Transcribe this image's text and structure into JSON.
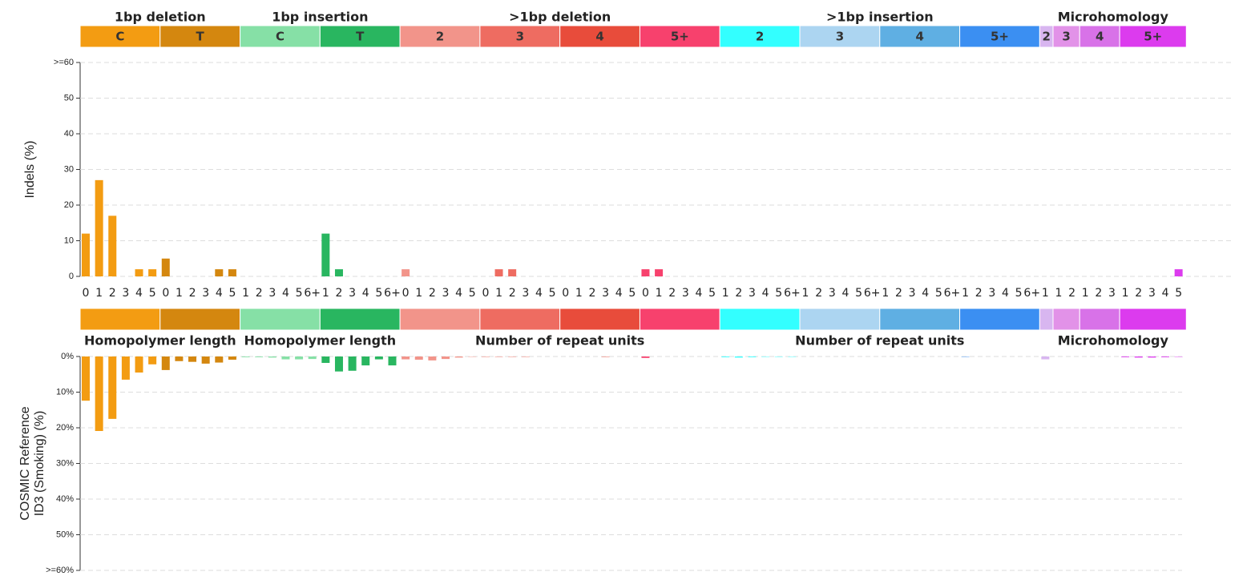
{
  "chart_data": [
    {
      "type": "bar",
      "ylabel": "Indels (%)",
      "ylim": [
        0,
        60
      ],
      "yticks": [
        0,
        10,
        20,
        30,
        40,
        50,
        {
          "value": 60,
          "label": ">=60"
        }
      ],
      "grid": true,
      "groups": [
        {
          "title": "1bp deletion",
          "bottom_label": "Homopolymer length",
          "subgroups": [
            {
              "label": "C",
              "color": "#f39c12",
              "categories": [
                "0",
                "1",
                "2",
                "3",
                "4",
                "5"
              ]
            },
            {
              "label": "T",
              "color": "#d4870f",
              "categories": [
                "0",
                "1",
                "2",
                "3",
                "4",
                "5"
              ]
            }
          ]
        },
        {
          "title": "1bp insertion",
          "bottom_label": "Homopolymer length",
          "subgroups": [
            {
              "label": "C",
              "color": "#86e0a6",
              "categories": [
                "1",
                "2",
                "3",
                "4",
                "5",
                "6+"
              ]
            },
            {
              "label": "T",
              "color": "#29b660",
              "categories": [
                "1",
                "2",
                "3",
                "4",
                "5",
                "6+"
              ]
            }
          ]
        },
        {
          "title": ">1bp deletion",
          "bottom_label": "Number of repeat units",
          "subgroups": [
            {
              "label": "2",
              "color": "#f2948a",
              "categories": [
                "0",
                "1",
                "2",
                "3",
                "4",
                "5"
              ]
            },
            {
              "label": "3",
              "color": "#ee6c61",
              "categories": [
                "0",
                "1",
                "2",
                "3",
                "4",
                "5"
              ]
            },
            {
              "label": "4",
              "color": "#e84c3b",
              "categories": [
                "0",
                "1",
                "2",
                "3",
                "4",
                "5"
              ]
            },
            {
              "label": "5+",
              "color": "#f7416d",
              "categories": [
                "0",
                "1",
                "2",
                "3",
                "4",
                "5"
              ]
            }
          ]
        },
        {
          "title": ">1bp insertion",
          "bottom_label": "Number of repeat units",
          "subgroups": [
            {
              "label": "2",
              "color": "#33ffff",
              "categories": [
                "1",
                "2",
                "3",
                "4",
                "5",
                "6+"
              ]
            },
            {
              "label": "3",
              "color": "#acd5f1",
              "categories": [
                "1",
                "2",
                "3",
                "4",
                "5",
                "6+"
              ]
            },
            {
              "label": "4",
              "color": "#5fafe3",
              "categories": [
                "1",
                "2",
                "3",
                "4",
                "5",
                "6+"
              ]
            },
            {
              "label": "5+",
              "color": "#3b8ff2",
              "categories": [
                "1",
                "2",
                "3",
                "4",
                "5",
                "6+"
              ]
            }
          ]
        },
        {
          "title": "Microhomology",
          "bottom_label": "Microhomology",
          "subgroups": [
            {
              "label": "2",
              "color": "#d8b6f0",
              "categories": [
                "1"
              ]
            },
            {
              "label": "3",
              "color": "#e292e8",
              "categories": [
                "1",
                "2"
              ]
            },
            {
              "label": "4",
              "color": "#d872e8",
              "categories": [
                "1",
                "2",
                "3"
              ]
            },
            {
              "label": "5+",
              "color": "#dc3bee",
              "categories": [
                "1",
                "2",
                "3",
                "4",
                "5"
              ]
            }
          ]
        }
      ],
      "values": [
        12,
        27,
        17,
        0,
        2,
        2,
        5,
        0,
        0,
        0,
        2,
        2,
        0,
        0,
        0,
        0,
        0,
        0,
        12,
        2,
        0,
        0,
        0,
        0,
        2,
        0,
        0,
        0,
        0,
        0,
        0,
        2,
        2,
        0,
        0,
        0,
        0,
        0,
        0,
        0,
        0,
        0,
        2,
        2,
        0,
        0,
        0,
        0,
        0,
        0,
        0,
        0,
        0,
        0,
        0,
        0,
        0,
        0,
        0,
        0,
        0,
        0,
        0,
        0,
        0,
        0,
        0,
        0,
        0,
        0,
        0,
        0,
        0,
        0,
        0,
        0,
        0,
        0,
        0,
        0,
        0,
        0,
        2
      ]
    },
    {
      "type": "bar",
      "ylabel": [
        "COSMIC Reference",
        "ID3 (Smoking) (%)"
      ],
      "ylim": [
        0,
        60
      ],
      "inverted": true,
      "grid": true,
      "yticks": [
        {
          "value": 0,
          "label": "0%"
        },
        {
          "value": 10,
          "label": "10%"
        },
        {
          "value": 20,
          "label": "20%"
        },
        {
          "value": 30,
          "label": "30%"
        },
        {
          "value": 40,
          "label": "40%"
        },
        {
          "value": 50,
          "label": "50%"
        },
        {
          "value": 60,
          "label": ">=60%"
        }
      ],
      "values": [
        12.4,
        20.9,
        17.5,
        6.5,
        4.5,
        2.2,
        3.8,
        1.3,
        1.5,
        2,
        1.7,
        0.9,
        0.2,
        0.2,
        0.3,
        0.8,
        0.8,
        0.7,
        1.8,
        4.2,
        4,
        2.5,
        0.8,
        2.5,
        0.8,
        0.9,
        1.1,
        0.7,
        0.3,
        0.1,
        0.1,
        0.1,
        0.1,
        0.1,
        0,
        0,
        0,
        0,
        0,
        0.1,
        0,
        0,
        0.4,
        0,
        0,
        0,
        0,
        0,
        0.2,
        0.3,
        0.2,
        0.1,
        0.1,
        0.1,
        0,
        0,
        0,
        0,
        0,
        0,
        0,
        0,
        0,
        0,
        0,
        0,
        0.1,
        0,
        0,
        0,
        0,
        0,
        0.8,
        0,
        0,
        0,
        0,
        0,
        0.2,
        0.3,
        0.3,
        0.2,
        0.1
      ]
    }
  ]
}
